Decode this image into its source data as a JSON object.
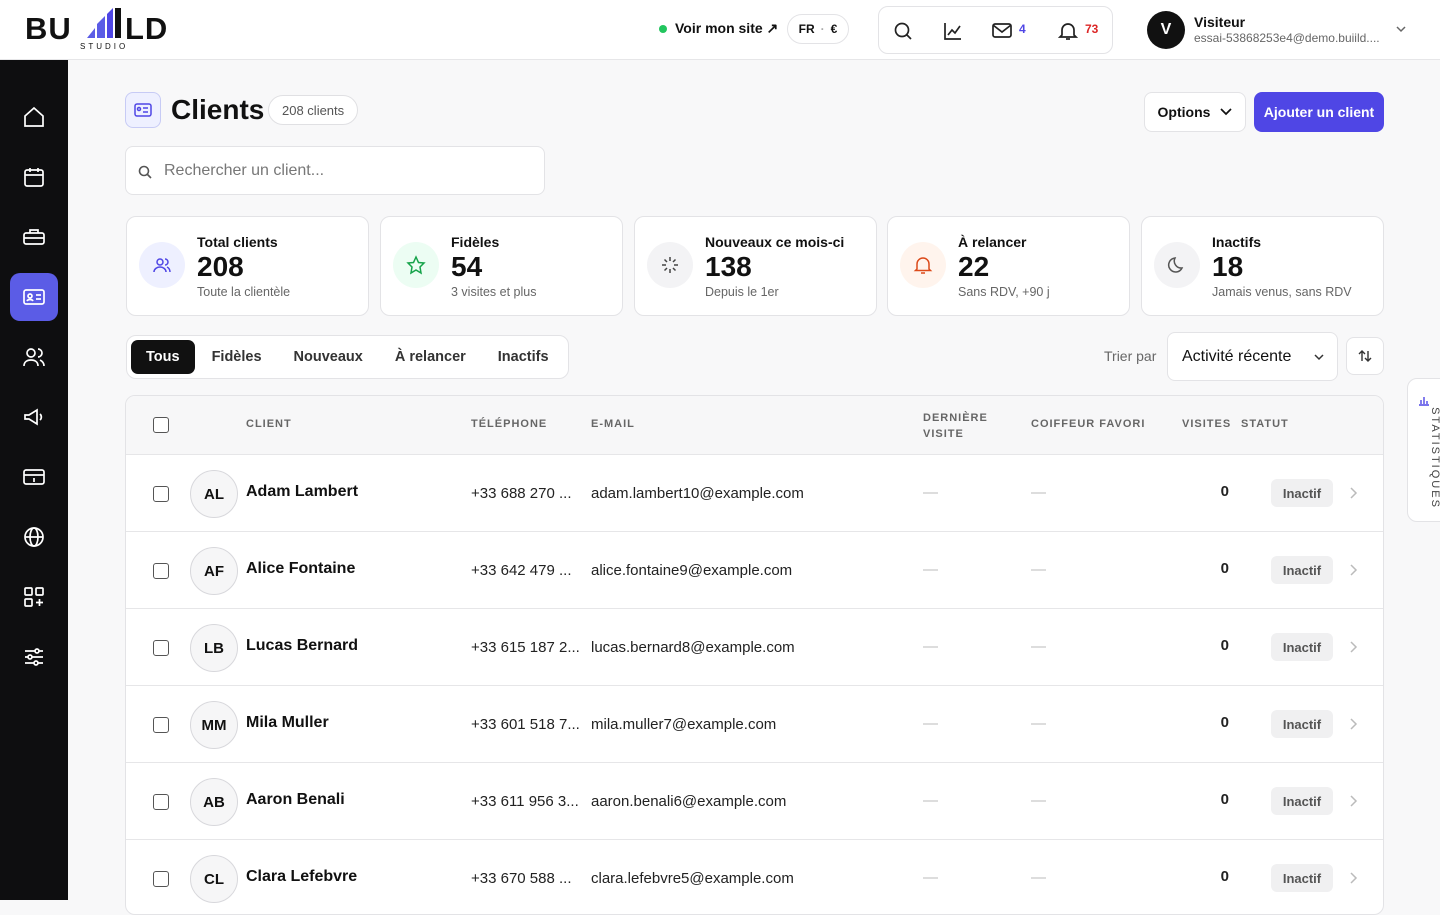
{
  "header": {
    "logo": {
      "left": "BU",
      "right": "LD",
      "sub": "STUDIO"
    },
    "site_link": "Voir mon site ↗",
    "lang": "FR",
    "currency": "€",
    "messages_count": "4",
    "notifications_count": "73",
    "user": {
      "avatar": "V",
      "name": "Visiteur",
      "email": "essai-53868253e4@demo.buiild...."
    }
  },
  "page": {
    "title": "Clients",
    "count_badge": "208 clients",
    "options_button": "Options",
    "add_button": "Ajouter un client",
    "search_placeholder": "Rechercher un client..."
  },
  "stats": [
    {
      "label": "Total clients",
      "value": "208",
      "sub": "Toute la clientèle"
    },
    {
      "label": "Fidèles",
      "value": "54",
      "sub": "3 visites et plus"
    },
    {
      "label": "Nouveaux ce mois-ci",
      "value": "138",
      "sub": "Depuis le 1er"
    },
    {
      "label": "À relancer",
      "value": "22",
      "sub": "Sans RDV, +90 j"
    },
    {
      "label": "Inactifs",
      "value": "18",
      "sub": "Jamais venus, sans RDV"
    }
  ],
  "filters": {
    "tabs": [
      "Tous",
      "Fidèles",
      "Nouveaux",
      "À relancer",
      "Inactifs"
    ],
    "sort_label": "Trier par",
    "sort_value": "Activité récente"
  },
  "table": {
    "columns": [
      "CLIENT",
      "TÉLÉPHONE",
      "E-MAIL",
      "DERNIÈRE VISITE",
      "COIFFEUR FAVORI",
      "VISITES",
      "STATUT"
    ],
    "rows": [
      [
        "AL",
        "Adam Lambert",
        "+33 688 270 ...",
        "adam.lambert10@example.com",
        "—",
        "—",
        "0",
        "Inactif"
      ],
      [
        "AF",
        "Alice Fontaine",
        "+33 642 479 ...",
        "alice.fontaine9@example.com",
        "—",
        "—",
        "0",
        "Inactif"
      ],
      [
        "LB",
        "Lucas Bernard",
        "+33 615 187 2...",
        "lucas.bernard8@example.com",
        "—",
        "—",
        "0",
        "Inactif"
      ],
      [
        "MM",
        "Mila Muller",
        "+33 601 518 7...",
        "mila.muller7@example.com",
        "—",
        "—",
        "0",
        "Inactif"
      ],
      [
        "AB",
        "Aaron Benali",
        "+33 611 956 3...",
        "aaron.benali6@example.com",
        "—",
        "—",
        "0",
        "Inactif"
      ],
      [
        "CL",
        "Clara Lefebvre",
        "+33 670 588 ...",
        "clara.lefebvre5@example.com",
        "—",
        "—",
        "0",
        "Inactif"
      ]
    ]
  },
  "side_tab": "STATISTIQUES"
}
